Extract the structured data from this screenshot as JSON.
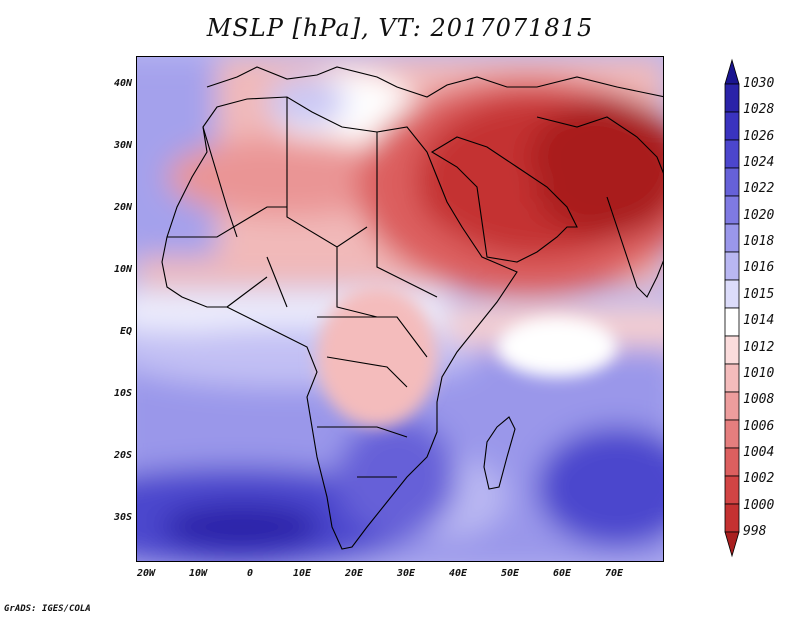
{
  "title": "MSLP [hPa], VT: 2017071815",
  "credit": "GrADS: IGES/COLA",
  "map": {
    "type": "filled-contour",
    "variable": "MSLP",
    "units": "hPa",
    "region": "Africa and Middle East",
    "lon_ticks": [
      "20W",
      "10W",
      "0",
      "10E",
      "20E",
      "30E",
      "40E",
      "50E",
      "60E",
      "70E"
    ],
    "lat_ticks": [
      "40N",
      "30N",
      "20N",
      "10N",
      "EQ",
      "10S",
      "20S",
      "30S"
    ],
    "low_pressure_center": "Arabian Peninsula / Iran / Pakistan (~998-1000 hPa)",
    "high_pressure_center": "South Atlantic and South Indian Ocean (~1026-1030 hPa)"
  },
  "colorbar": {
    "labels": [
      "1030",
      "1028",
      "1026",
      "1024",
      "1022",
      "1020",
      "1018",
      "1016",
      "1015",
      "1014",
      "1012",
      "1010",
      "1008",
      "1006",
      "1004",
      "1002",
      "1000",
      "998"
    ],
    "colors": [
      "#1a1590",
      "#2a23a8",
      "#3a33bf",
      "#4c46cd",
      "#6661d8",
      "#7f7ae2",
      "#9a97ea",
      "#b9b7f2",
      "#dcdcfa",
      "#ffffff",
      "#fbdcdc",
      "#f4bcbc",
      "#ed9d9d",
      "#e57e7e",
      "#dc5f5f",
      "#d24444",
      "#c43131",
      "#a91f1f"
    ]
  }
}
